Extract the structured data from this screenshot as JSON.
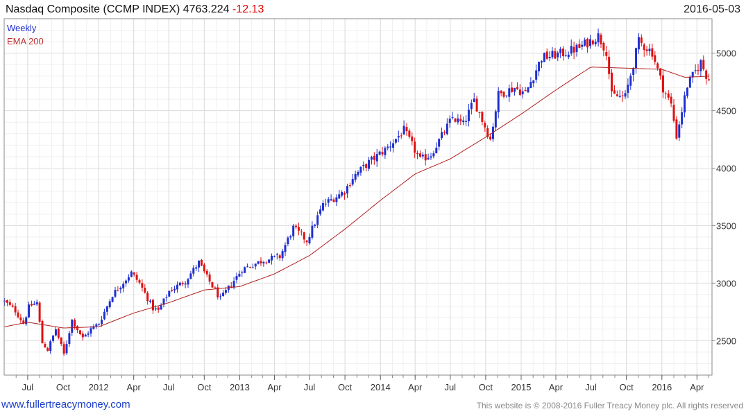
{
  "header": {
    "title": "Nasdaq Composite (CCMP INDEX) 4763.224",
    "change": "-12.13",
    "date": "2016-05-03"
  },
  "footer": {
    "link": "www.fullertreacymoney.com",
    "copyright": "This website is © 2008-2016 Fuller Treacy Money plc. All rights reserved"
  },
  "colors": {
    "up": "#1f2fd0",
    "down": "#e01010",
    "ema": "#b02020",
    "grid": "#dcdcdc",
    "legend_weekly": "#1f2fd0",
    "legend_ema": "#c03030"
  },
  "chart_data": {
    "type": "candlestick",
    "title": "Nasdaq Composite (CCMP INDEX) 4763.224 -12.13",
    "frequency_label": "Weekly",
    "ema_label": "EMA 200",
    "ylim": [
      2200,
      5300
    ],
    "yticks": [
      2500,
      3000,
      3500,
      4000,
      4500,
      5000
    ],
    "x_range": [
      "2011-05-01",
      "2016-05-10"
    ],
    "xticks": [
      {
        "label": "Jul",
        "date": "2011-07-01"
      },
      {
        "label": "Oct",
        "date": "2011-10-01"
      },
      {
        "label": "2012",
        "date": "2012-01-01"
      },
      {
        "label": "Apr",
        "date": "2012-04-01"
      },
      {
        "label": "Jul",
        "date": "2012-07-01"
      },
      {
        "label": "Oct",
        "date": "2012-10-01"
      },
      {
        "label": "2013",
        "date": "2013-01-01"
      },
      {
        "label": "Apr",
        "date": "2013-04-01"
      },
      {
        "label": "Jul",
        "date": "2013-07-01"
      },
      {
        "label": "Oct",
        "date": "2013-10-01"
      },
      {
        "label": "2014",
        "date": "2014-01-01"
      },
      {
        "label": "Apr",
        "date": "2014-04-01"
      },
      {
        "label": "Jul",
        "date": "2014-07-01"
      },
      {
        "label": "Oct",
        "date": "2014-10-01"
      },
      {
        "label": "2015",
        "date": "2015-01-01"
      },
      {
        "label": "Apr",
        "date": "2015-04-01"
      },
      {
        "label": "Jul",
        "date": "2015-07-01"
      },
      {
        "label": "Oct",
        "date": "2015-10-01"
      },
      {
        "label": "2016",
        "date": "2016-01-01"
      },
      {
        "label": "Apr",
        "date": "2016-04-01"
      }
    ],
    "close_anchors": [
      [
        "2011-05-02",
        2840
      ],
      [
        "2011-05-30",
        2760
      ],
      [
        "2011-06-20",
        2650
      ],
      [
        "2011-07-05",
        2800
      ],
      [
        "2011-07-25",
        2830
      ],
      [
        "2011-08-08",
        2480
      ],
      [
        "2011-08-22",
        2420
      ],
      [
        "2011-09-12",
        2600
      ],
      [
        "2011-10-03",
        2380
      ],
      [
        "2011-10-24",
        2680
      ],
      [
        "2011-11-21",
        2520
      ],
      [
        "2011-12-12",
        2600
      ],
      [
        "2012-01-02",
        2650
      ],
      [
        "2012-02-06",
        2900
      ],
      [
        "2012-03-26",
        3090
      ],
      [
        "2012-04-16",
        3000
      ],
      [
        "2012-05-21",
        2780
      ],
      [
        "2012-06-04",
        2760
      ],
      [
        "2012-07-02",
        2930
      ],
      [
        "2012-08-13",
        3020
      ],
      [
        "2012-09-17",
        3180
      ],
      [
        "2012-10-08",
        3050
      ],
      [
        "2012-11-12",
        2860
      ],
      [
        "2012-12-10",
        2990
      ],
      [
        "2013-01-07",
        3120
      ],
      [
        "2013-03-04",
        3200
      ],
      [
        "2013-04-15",
        3230
      ],
      [
        "2013-05-20",
        3480
      ],
      [
        "2013-06-24",
        3370
      ],
      [
        "2013-08-05",
        3680
      ],
      [
        "2013-09-30",
        3800
      ],
      [
        "2013-10-21",
        3920
      ],
      [
        "2013-12-02",
        4050
      ],
      [
        "2014-01-20",
        4180
      ],
      [
        "2014-03-03",
        4330
      ],
      [
        "2014-04-14",
        4070
      ],
      [
        "2014-05-12",
        4120
      ],
      [
        "2014-07-07",
        4440
      ],
      [
        "2014-08-04",
        4380
      ],
      [
        "2014-09-01",
        4590
      ],
      [
        "2014-10-13",
        4250
      ],
      [
        "2014-11-03",
        4640
      ],
      [
        "2014-12-15",
        4700
      ],
      [
        "2015-01-12",
        4650
      ],
      [
        "2015-02-23",
        4960
      ],
      [
        "2015-04-20",
        5000
      ],
      [
        "2015-06-01",
        5050
      ],
      [
        "2015-07-20",
        5150
      ],
      [
        "2015-08-10",
        5020
      ],
      [
        "2015-08-24",
        4630
      ],
      [
        "2015-09-28",
        4620
      ],
      [
        "2015-11-02",
        5100
      ],
      [
        "2015-12-07",
        5010
      ],
      [
        "2016-01-04",
        4700
      ],
      [
        "2016-01-25",
        4550
      ],
      [
        "2016-02-08",
        4280
      ],
      [
        "2016-03-07",
        4720
      ],
      [
        "2016-04-11",
        4920
      ],
      [
        "2016-04-25",
        4810
      ],
      [
        "2016-05-02",
        4763
      ]
    ],
    "ema_anchors": [
      [
        "2011-05-02",
        2620
      ],
      [
        "2011-07-01",
        2660
      ],
      [
        "2011-10-01",
        2610
      ],
      [
        "2012-01-01",
        2620
      ],
      [
        "2012-04-01",
        2740
      ],
      [
        "2012-07-01",
        2830
      ],
      [
        "2012-10-01",
        2940
      ],
      [
        "2013-01-01",
        2970
      ],
      [
        "2013-04-01",
        3080
      ],
      [
        "2013-07-01",
        3240
      ],
      [
        "2013-10-01",
        3470
      ],
      [
        "2014-01-01",
        3720
      ],
      [
        "2014-04-01",
        3950
      ],
      [
        "2014-07-01",
        4080
      ],
      [
        "2014-10-01",
        4270
      ],
      [
        "2015-01-01",
        4470
      ],
      [
        "2015-04-01",
        4680
      ],
      [
        "2015-07-01",
        4880
      ],
      [
        "2015-10-01",
        4870
      ],
      [
        "2016-01-01",
        4860
      ],
      [
        "2016-03-01",
        4790
      ],
      [
        "2016-05-02",
        4800
      ]
    ],
    "range_note": "weekly OHLC candles; highs ~5230 (Jul 2015), lows ~2300 (Oct 2011)"
  }
}
